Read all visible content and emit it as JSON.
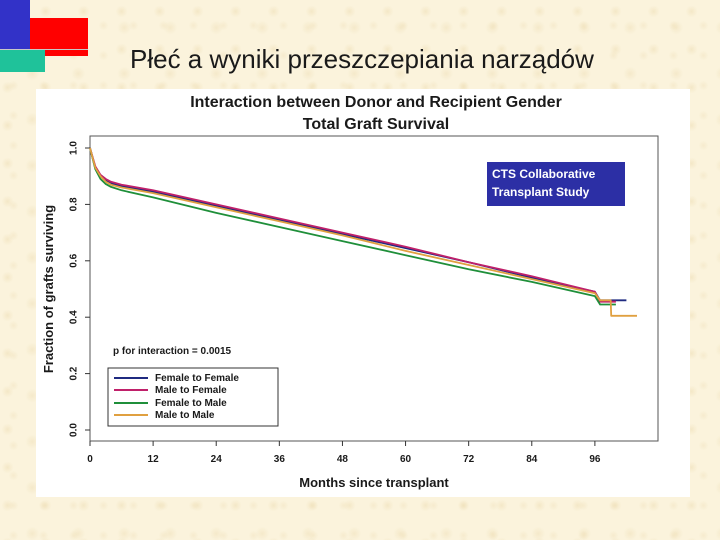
{
  "slide": {
    "title": "Płeć a wyniki przeszczepiania narządów",
    "colors": {
      "blue": "#3232c8",
      "red": "#ff0000",
      "green": "#1fc29a"
    }
  },
  "chart_data": {
    "type": "line",
    "title": [
      "Interaction between Donor and Recipient Gender",
      "Total Graft Survival"
    ],
    "xlabel": "Months since transplant",
    "ylabel": "Fraction of grafts surviving",
    "xlim": [
      0,
      108
    ],
    "ylim": [
      0,
      1.0
    ],
    "xticks": [
      0,
      12,
      24,
      36,
      48,
      60,
      72,
      84,
      96
    ],
    "yticks": [
      "0.0",
      "0.2",
      "0.4",
      "0.6",
      "0.8",
      "1.0"
    ],
    "annotation": "p for interaction = 0.0015",
    "badge": [
      "CTS Collaborative",
      "Transplant Study"
    ],
    "legend_position": "bottom-left",
    "series": [
      {
        "name": "Female to Female",
        "color": "#1f2a80",
        "x": [
          0,
          1,
          2,
          3,
          4,
          6,
          12,
          24,
          36,
          48,
          60,
          72,
          84,
          96,
          97,
          102
        ],
        "y": [
          1.0,
          0.93,
          0.9,
          0.885,
          0.875,
          0.865,
          0.845,
          0.795,
          0.745,
          0.695,
          0.645,
          0.595,
          0.54,
          0.49,
          0.46,
          0.46
        ]
      },
      {
        "name": "Male to Female",
        "color": "#c0206a",
        "x": [
          0,
          1,
          2,
          3,
          4,
          6,
          12,
          24,
          36,
          48,
          60,
          72,
          84,
          96,
          97,
          100
        ],
        "y": [
          1.0,
          0.935,
          0.905,
          0.89,
          0.88,
          0.87,
          0.85,
          0.8,
          0.75,
          0.7,
          0.65,
          0.595,
          0.545,
          0.49,
          0.455,
          0.455
        ]
      },
      {
        "name": "Female to Male",
        "color": "#1f8f3a",
        "x": [
          0,
          1,
          2,
          3,
          4,
          6,
          12,
          24,
          36,
          48,
          60,
          72,
          84,
          96,
          97,
          100
        ],
        "y": [
          1.0,
          0.925,
          0.89,
          0.872,
          0.862,
          0.85,
          0.825,
          0.77,
          0.72,
          0.67,
          0.62,
          0.57,
          0.525,
          0.475,
          0.445,
          0.445
        ]
      },
      {
        "name": "Male to Male",
        "color": "#e0a040",
        "x": [
          0,
          1,
          2,
          3,
          4,
          6,
          12,
          24,
          36,
          48,
          60,
          72,
          84,
          96,
          97,
          99,
          99.1,
          104
        ],
        "y": [
          1.0,
          0.93,
          0.9,
          0.88,
          0.87,
          0.86,
          0.84,
          0.79,
          0.74,
          0.69,
          0.635,
          0.585,
          0.535,
          0.485,
          0.46,
          0.46,
          0.405,
          0.405
        ]
      }
    ]
  }
}
